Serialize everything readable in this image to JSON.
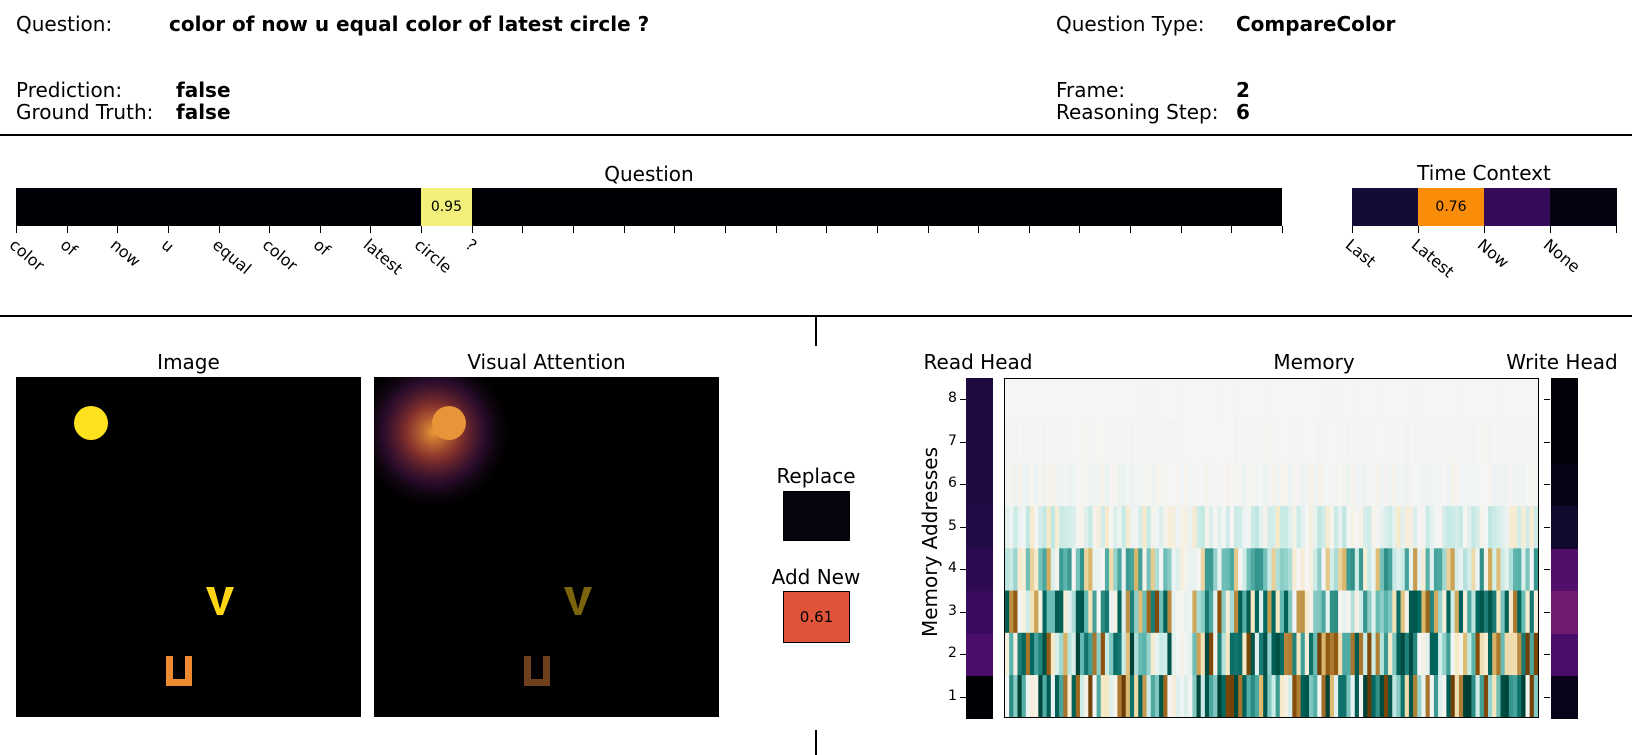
{
  "header": {
    "question_label": "Question:",
    "question_value": "color of now u equal color of latest circle ?",
    "question_type_label": "Question Type:",
    "question_type_value": "CompareColor",
    "prediction_label": "Prediction:",
    "prediction_value": "false",
    "ground_truth_label": "Ground Truth:",
    "ground_truth_value": "false",
    "frame_label": "Frame:",
    "frame_value": "2",
    "reasoning_step_label": "Reasoning Step:",
    "reasoning_step_value": "6"
  },
  "panels": {
    "question_title": "Question",
    "time_context_title": "Time Context",
    "image_title": "Image",
    "visual_attention_title": "Visual Attention",
    "replace_title": "Replace",
    "add_new_title": "Add New",
    "read_head_title": "Read Head",
    "memory_title": "Memory",
    "write_head_title": "Write Head",
    "memory_ylabel": "Memory Addresses"
  },
  "chart_data": [
    {
      "type": "heatmap",
      "title": "Question",
      "categories": [
        "color",
        "of",
        "now",
        "u",
        "equal",
        "color",
        "of",
        "latest",
        "circle",
        "?",
        "",
        "",
        "",
        "",
        "",
        "",
        "",
        "",
        "",
        "",
        "",
        "",
        "",
        "",
        ""
      ],
      "values": [
        0.01,
        0.01,
        0.01,
        0.01,
        0.01,
        0.01,
        0.01,
        0.01,
        0.95,
        0.01,
        0,
        0,
        0,
        0,
        0,
        0,
        0,
        0,
        0,
        0,
        0,
        0,
        0,
        0,
        0
      ],
      "annotation": "0.95"
    },
    {
      "type": "heatmap",
      "title": "Time Context",
      "categories": [
        "Last",
        "Latest",
        "Now",
        "None"
      ],
      "values": [
        0.08,
        0.76,
        0.14,
        0.02
      ],
      "annotation": "0.76"
    },
    {
      "type": "heatmap",
      "title": "Replace",
      "values": [
        0.01
      ]
    },
    {
      "type": "heatmap",
      "title": "Add New",
      "values": [
        0.61
      ],
      "annotation": "0.61"
    },
    {
      "type": "heatmap",
      "title": "Read Head",
      "ylabel": "Memory Addresses",
      "y": [
        1,
        2,
        3,
        4,
        5,
        6,
        7,
        8
      ],
      "values": [
        0.0,
        0.22,
        0.18,
        0.15,
        0.13,
        0.12,
        0.12,
        0.12
      ]
    },
    {
      "type": "heatmap",
      "title": "Write Head",
      "y": [
        1,
        2,
        3,
        4,
        5,
        6,
        7,
        8
      ],
      "values": [
        0.04,
        0.22,
        0.32,
        0.24,
        0.08,
        0.03,
        0.01,
        0.01
      ]
    },
    {
      "type": "heatmap",
      "title": "Memory",
      "ylabel": "Memory Addresses",
      "y": [
        1,
        2,
        3,
        4,
        5,
        6,
        7,
        8
      ],
      "yticks": [
        "1",
        "2",
        "3",
        "4",
        "5",
        "6",
        "7",
        "8"
      ],
      "colormap": "BrBG"
    }
  ],
  "colors": {
    "question_cell_high": "#f2f07a",
    "time_cell_high": "#f98d0a",
    "add_new_cell": "#e0553a",
    "replace_cell": "#05050e",
    "circle_yellow": "#ffe21f",
    "letter_yellow": "#ffd514",
    "letter_orange": "#f08a32"
  }
}
